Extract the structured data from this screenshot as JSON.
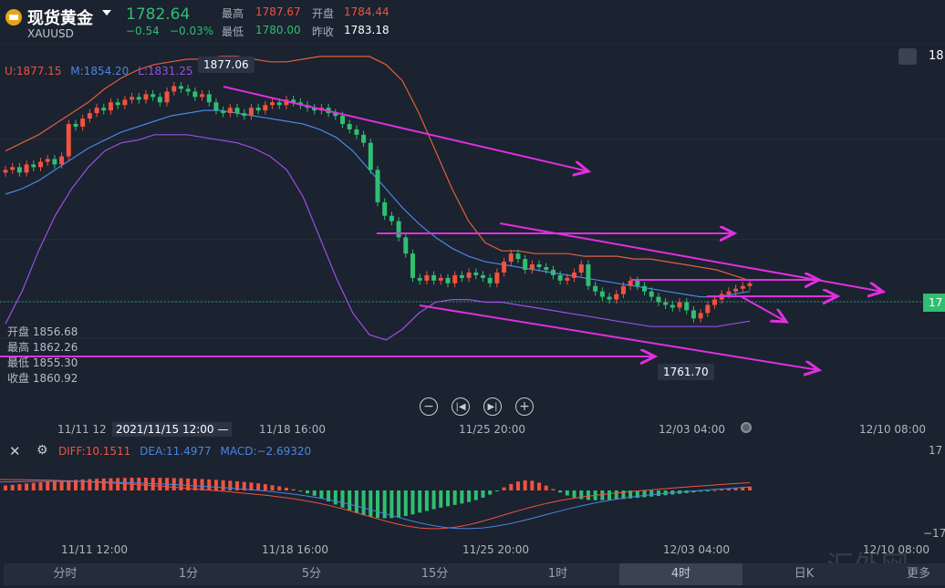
{
  "header": {
    "title": "现货黄金",
    "symbol": "XAUUSD",
    "price": "1782.64",
    "change": "−0.54",
    "change_pct": "−0.03%",
    "high_label": "最高",
    "high": "1787.67",
    "open_label": "开盘",
    "open": "1784.44",
    "low_label": "最低",
    "low": "1780.00",
    "prev_label": "昨收",
    "prev": "1783.18"
  },
  "boll": {
    "u": "U:1877.15",
    "m": "M:1854.20",
    "l": "L:1831.25"
  },
  "ohlc_panel": {
    "open": "开盘 1856.68",
    "high": "最高 1862.26",
    "low": "最低 1855.30",
    "close": "收盘 1860.92"
  },
  "annotations": {
    "peak": "1877.06",
    "trough": "1761.70",
    "price_tag": "17",
    "right_partial": "18"
  },
  "x_axis": {
    "labels": [
      "11/11 12",
      "11/18 16:00",
      "11/25 20:00",
      "12/03 04:00",
      "12/10 08:00"
    ],
    "crosshair": "2021/11/15 12:00 —"
  },
  "macd": {
    "diff": "DIFF:10.1511",
    "dea": "DEA:11.4977",
    "macd": "MACD:−2.69320",
    "right_top": "17",
    "right_bottom": "−17",
    "x_labels": [
      "11/11 12:00",
      "11/18 16:00",
      "11/25 20:00",
      "12/03 04:00",
      "12/10 08:00"
    ]
  },
  "tabs": [
    "分时",
    "1分",
    "5分",
    "15分",
    "1时",
    "4时",
    "日K",
    "更多"
  ],
  "active_tab": "4时",
  "watermark": "汇外网",
  "colors": {
    "up": "#f0533f",
    "down": "#2fbf71",
    "boll_u": "#e0603a",
    "boll_m": "#4a86e0",
    "boll_l": "#9b4fe0",
    "trend": "#e030e0"
  },
  "chart_data": {
    "type": "candlestick",
    "ylim": [
      1755,
      1890
    ],
    "closes": [
      1845,
      1846,
      1844,
      1847,
      1846,
      1848,
      1849,
      1847,
      1850,
      1862,
      1861,
      1864,
      1866,
      1868,
      1867,
      1870,
      1869,
      1871,
      1872,
      1871,
      1873,
      1872,
      1870,
      1874,
      1876,
      1875,
      1874,
      1872,
      1873,
      1870,
      1867,
      1866,
      1868,
      1866,
      1865,
      1868,
      1867,
      1869,
      1870,
      1869,
      1871,
      1870,
      1869,
      1868,
      1867,
      1868,
      1866,
      1865,
      1862,
      1860,
      1858,
      1855,
      1845,
      1833,
      1828,
      1826,
      1820,
      1814,
      1805,
      1804,
      1806,
      1804,
      1805,
      1803,
      1806,
      1805,
      1807,
      1806,
      1805,
      1803,
      1807,
      1811,
      1814,
      1812,
      1808,
      1810,
      1809,
      1808,
      1806,
      1804,
      1805,
      1807,
      1810,
      1802,
      1800,
      1798,
      1797,
      1799,
      1802,
      1804,
      1802,
      1800,
      1798,
      1796,
      1795,
      1794,
      1796,
      1793,
      1790,
      1792,
      1795,
      1797,
      1799,
      1800,
      1801,
      1802,
      1803
    ],
    "boll_upper": [
      1852,
      1855,
      1858,
      1862,
      1866,
      1870,
      1875,
      1879,
      1882,
      1884,
      1885,
      1886,
      1886,
      1887,
      1887,
      1886,
      1885,
      1885,
      1886,
      1887,
      1887,
      1887,
      1887,
      1884,
      1878,
      1866,
      1852,
      1838,
      1826,
      1818,
      1815,
      1815,
      1814,
      1814,
      1814,
      1813,
      1813,
      1813,
      1812,
      1812,
      1811,
      1810,
      1809,
      1808,
      1806,
      1804
    ],
    "boll_mid": [
      1836,
      1838,
      1841,
      1845,
      1849,
      1853,
      1856,
      1859,
      1861,
      1863,
      1865,
      1866,
      1867,
      1867,
      1866,
      1865,
      1864,
      1863,
      1862,
      1860,
      1857,
      1852,
      1845,
      1838,
      1831,
      1825,
      1820,
      1816,
      1813,
      1811,
      1810,
      1809,
      1808,
      1807,
      1806,
      1805,
      1804,
      1803,
      1802,
      1801,
      1800,
      1799,
      1798,
      1798,
      1799,
      1800
    ],
    "boll_lower": [
      1788,
      1800,
      1815,
      1828,
      1838,
      1846,
      1852,
      1855,
      1856,
      1858,
      1858,
      1858,
      1857,
      1856,
      1855,
      1853,
      1850,
      1845,
      1835,
      1820,
      1805,
      1792,
      1784,
      1782,
      1786,
      1792,
      1796,
      1797,
      1797,
      1796,
      1796,
      1795,
      1794,
      1793,
      1792,
      1791,
      1790,
      1789,
      1788,
      1787,
      1787,
      1787,
      1787,
      1787,
      1788,
      1789
    ]
  }
}
